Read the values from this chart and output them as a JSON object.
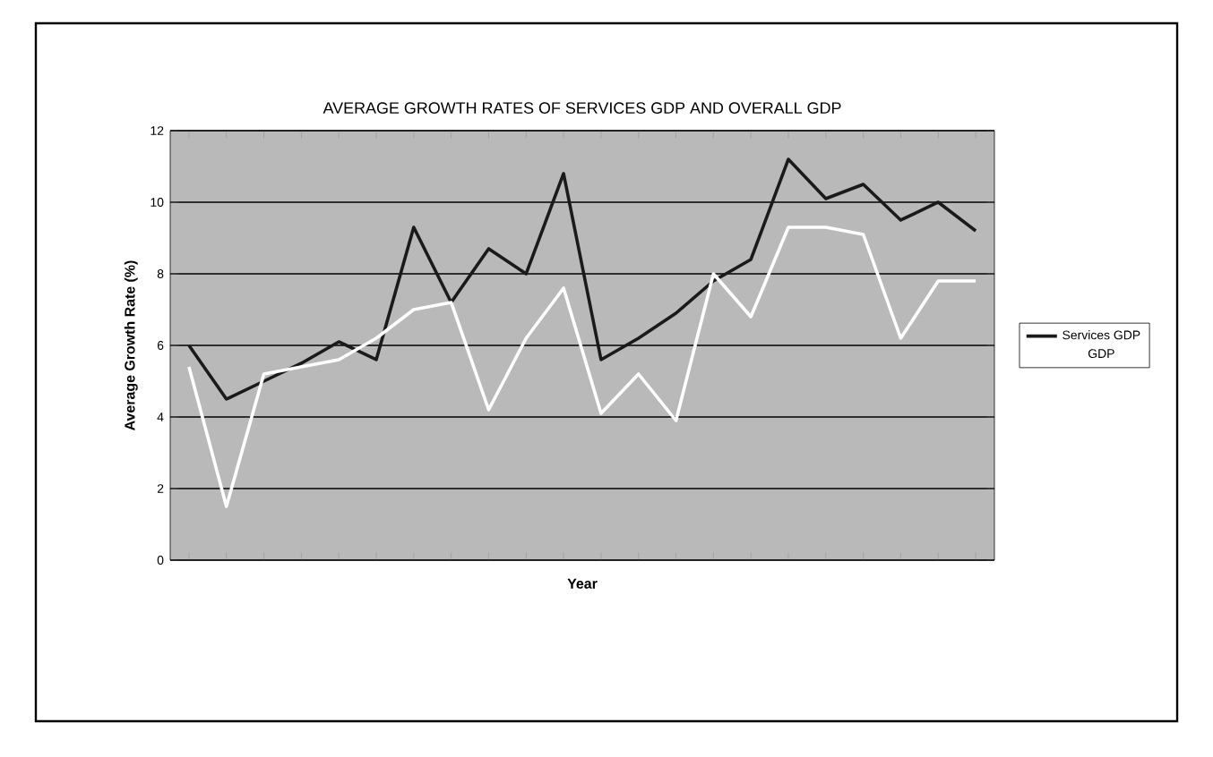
{
  "chart_data": {
    "type": "line",
    "title": "AVERAGE GROWTH RATES OF SERVICES GDP AND OVERALL GDP",
    "xlabel": "Year",
    "ylabel": "Average Growth Rate (%)",
    "categories": [
      null,
      null,
      null,
      null,
      null,
      null,
      null,
      null,
      null,
      null,
      null,
      null,
      null,
      null,
      null,
      null,
      null,
      null,
      null,
      null,
      null,
      null
    ],
    "series": [
      {
        "name": "Services GDP",
        "color": "#1a1a1a",
        "values": [
          6.0,
          4.5,
          5.0,
          5.5,
          6.1,
          5.6,
          9.3,
          7.2,
          8.7,
          8.0,
          10.8,
          5.6,
          6.2,
          6.9,
          7.8,
          8.4,
          11.2,
          10.1,
          10.5,
          9.5,
          10.0,
          9.2
        ]
      },
      {
        "name": "GDP",
        "color": "#ffffff",
        "values": [
          5.4,
          1.5,
          5.2,
          5.4,
          5.6,
          6.2,
          7.0,
          7.2,
          4.2,
          6.2,
          7.6,
          4.1,
          5.2,
          3.9,
          8.0,
          6.8,
          9.3,
          9.3,
          9.1,
          6.2,
          7.8,
          7.8
        ]
      }
    ],
    "ylim": [
      0,
      12
    ],
    "yticks": [
      0,
      2,
      4,
      6,
      8,
      10,
      12
    ],
    "grid": "y",
    "legend": "right",
    "marker": "none",
    "line_style": "solid"
  }
}
